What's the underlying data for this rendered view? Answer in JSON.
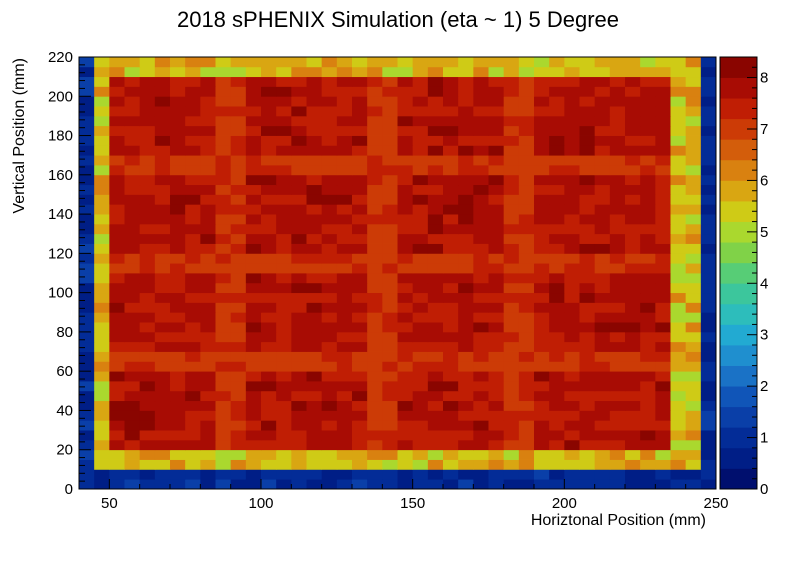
{
  "chart_data": {
    "type": "heatmap",
    "title": "2018 sPHENIX Simulation (eta ~ 1) 5 Degree",
    "xlabel": "Horiztonal Position (mm)",
    "ylabel": "Vertical Position (mm)",
    "xlim": [
      40,
      250
    ],
    "ylim": [
      0,
      220
    ],
    "zlim": [
      0,
      8.4
    ],
    "x_ticks": [
      50,
      100,
      150,
      200,
      250
    ],
    "y_ticks": [
      0,
      20,
      40,
      60,
      80,
      100,
      120,
      140,
      160,
      180,
      200,
      220
    ],
    "z_ticks": [
      0,
      1,
      2,
      3,
      4,
      5,
      6,
      7,
      8
    ],
    "bin_size_mm": 5,
    "active_region": {
      "x_range": [
        43,
        238
      ],
      "y_range": [
        15,
        215
      ]
    },
    "seams_y": [
      65,
      115,
      165
    ],
    "seams_x": [
      90,
      140,
      185
    ],
    "typical_values": {
      "interior": 7.6,
      "seam": 6.8,
      "edge_band": 5.0,
      "outside": 0.5
    },
    "grid": false,
    "colorbar": "right",
    "colormap": "rainbow (dark blue → cyan → green → yellow → orange → red → dark red)"
  }
}
